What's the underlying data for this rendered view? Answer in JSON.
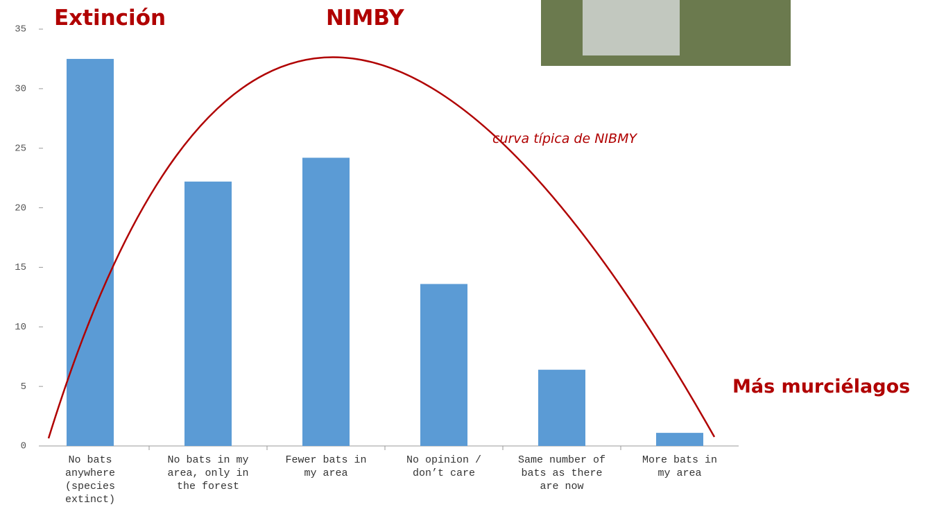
{
  "chart_data": {
    "type": "bar",
    "categories": [
      "No bats\nanywhere\n(species\nextinct)",
      "No bats in my\narea, only in\nthe forest",
      "Fewer bats in\nmy area",
      "No opinion /\ndon’t care",
      "Same number of\nbats as there\nare now",
      "More bats in\nmy area"
    ],
    "values": [
      32.5,
      22.2,
      24.2,
      13.6,
      6.4,
      1.1
    ],
    "color": "#5b9bd5",
    "ylim": [
      0,
      35
    ],
    "yticks": [
      0,
      5,
      10,
      15,
      20,
      25,
      30,
      35
    ],
    "annotations": [
      "Extinción",
      "NIMBY",
      "Más murciélagos",
      "curva típica de NIBMY"
    ]
  }
}
